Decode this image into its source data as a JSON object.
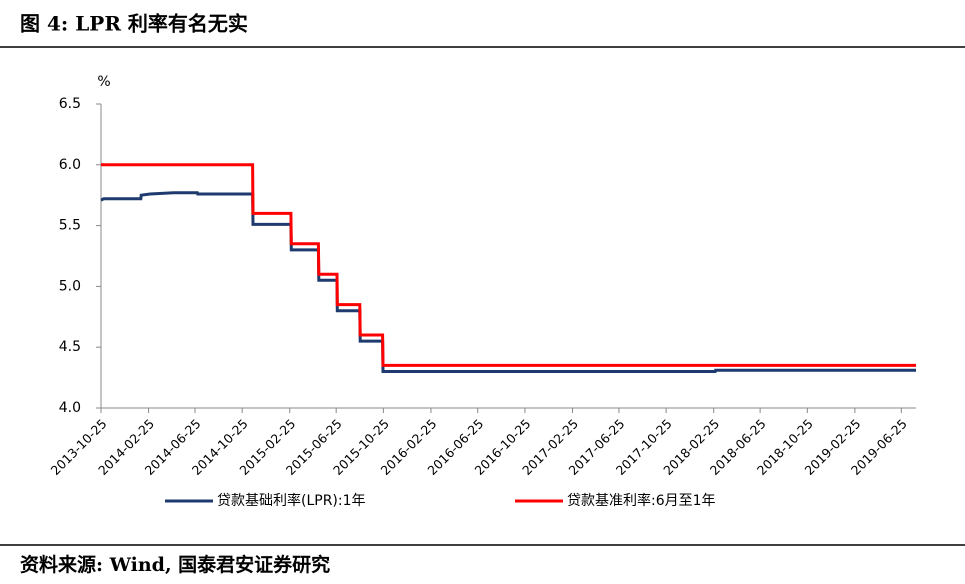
{
  "header": {
    "title": "图 4: LPR 利率有名无实"
  },
  "chart_data": {
    "type": "line",
    "y_label": "%",
    "xlim": [
      "2013-10-25",
      "2019-08-02"
    ],
    "xticks": [
      "2013-10-25",
      "2014-02-25",
      "2014-06-25",
      "2014-10-25",
      "2015-02-25",
      "2015-06-25",
      "2015-10-25",
      "2016-02-25",
      "2016-06-25",
      "2016-10-25",
      "2017-02-25",
      "2017-06-25",
      "2017-10-25",
      "2018-02-25",
      "2018-06-25",
      "2018-10-25",
      "2019-02-25",
      "2019-06-25"
    ],
    "ylim": [
      4.0,
      6.5
    ],
    "yticks": [
      {
        "value": 4.0,
        "label": "4.0"
      },
      4.5,
      {
        "value": 5.0,
        "label": "5.0"
      },
      5.5,
      {
        "value": 6.0,
        "label": "6.0"
      },
      6.5
    ],
    "legend": "bottom",
    "series": [
      {
        "name": "贷款基础利率(LPR):1年",
        "color": "#1f3a6e",
        "x": [
          "2013-10-25",
          "2013-11-01",
          "2014-02-05",
          "2014-02-06",
          "2014-03-01",
          "2014-05-01",
          "2014-07-01",
          "2014-07-02",
          "2014-11-21",
          "2014-11-22",
          "2015-02-28",
          "2015-03-01",
          "2015-05-10",
          "2015-05-11",
          "2015-06-27",
          "2015-06-28",
          "2015-08-25",
          "2015-08-26",
          "2015-10-23",
          "2015-10-24",
          "2018-03-01",
          "2018-03-02",
          "2019-08-02"
        ],
        "values": [
          5.71,
          5.72,
          5.72,
          5.75,
          5.76,
          5.77,
          5.77,
          5.76,
          5.76,
          5.51,
          5.51,
          5.3,
          5.3,
          5.05,
          5.05,
          4.8,
          4.8,
          4.55,
          4.55,
          4.3,
          4.3,
          4.31,
          4.31
        ]
      },
      {
        "name": "贷款基准利率:6月至1年",
        "color": "#ff0000",
        "x": [
          "2013-10-25",
          "2014-11-21",
          "2014-11-22",
          "2015-02-28",
          "2015-03-01",
          "2015-05-10",
          "2015-05-11",
          "2015-06-27",
          "2015-06-28",
          "2015-08-25",
          "2015-08-26",
          "2015-10-23",
          "2015-10-24",
          "2019-08-02"
        ],
        "values": [
          6.0,
          6.0,
          5.6,
          5.6,
          5.35,
          5.35,
          5.1,
          5.1,
          4.85,
          4.85,
          4.6,
          4.6,
          4.35,
          4.35
        ]
      }
    ]
  },
  "footer": {
    "source": "资料来源: Wind, 国泰君安证券研究"
  }
}
